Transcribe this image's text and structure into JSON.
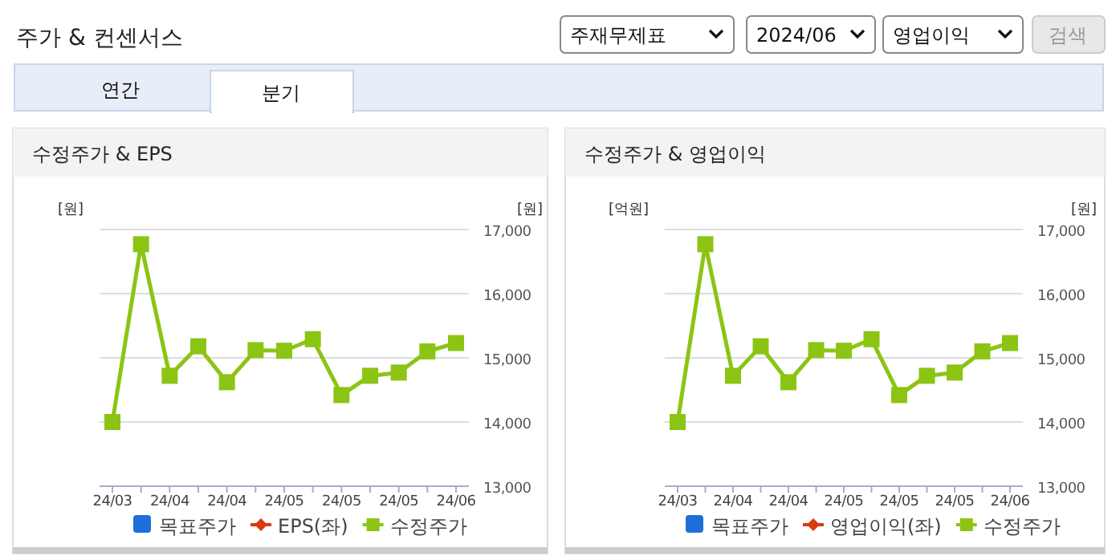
{
  "chart_data": [
    {
      "type": "line",
      "title": "수정주가 & EPS",
      "annotations": [
        "주가 & 컨센서스",
        "주재무제표",
        "2024/06",
        "영업이익",
        "검색",
        "연간",
        "분기"
      ],
      "ylabel": "[원]",
      "y2label": "[원]",
      "categories": [
        "24/03",
        null,
        "24/04",
        null,
        "24/04",
        null,
        "24/05",
        null,
        "24/05",
        null,
        "24/05",
        null,
        "24/06"
      ],
      "y2lim": [
        13000,
        17000
      ],
      "y2ticks": [
        {
          "value": 13000,
          "label": "13,000"
        },
        {
          "value": 14000,
          "label": "14,000"
        },
        {
          "value": 15000,
          "label": "15,000"
        },
        {
          "value": 16000,
          "label": "16,000"
        },
        {
          "value": 17000,
          "label": "17,000"
        }
      ],
      "grid": "y",
      "legend": "bottom",
      "line_style": "solid",
      "series": [
        {
          "name": "목표주가",
          "type": "bar",
          "color": "#1e6fdc",
          "values": [
            null,
            null,
            null,
            null,
            null,
            null,
            null,
            null,
            null,
            null,
            null,
            null,
            null
          ]
        },
        {
          "name": "EPS(좌)",
          "marker": "diamond",
          "color": "#d93a10",
          "values": [
            null,
            null,
            null,
            null,
            null,
            null,
            null,
            null,
            null,
            null,
            null,
            null,
            null
          ]
        },
        {
          "name": "수정주가",
          "marker": "square",
          "axis": "y2",
          "color": "#8cc414",
          "values": [
            14000,
            16770,
            14720,
            15180,
            14620,
            15120,
            15110,
            15290,
            14420,
            14720,
            14770,
            15100,
            15230
          ]
        }
      ]
    },
    {
      "type": "line",
      "title": "수정주가 & 영업이익",
      "ylabel": "[억원]",
      "y2label": "[원]",
      "categories": [
        "24/03",
        null,
        "24/04",
        null,
        "24/04",
        null,
        "24/05",
        null,
        "24/05",
        null,
        "24/05",
        null,
        "24/06"
      ],
      "y2lim": [
        13000,
        17000
      ],
      "y2ticks": [
        {
          "value": 13000,
          "label": "13,000"
        },
        {
          "value": 14000,
          "label": "14,000"
        },
        {
          "value": 15000,
          "label": "15,000"
        },
        {
          "value": 16000,
          "label": "16,000"
        },
        {
          "value": 17000,
          "label": "17,000"
        }
      ],
      "grid": "y",
      "legend": "bottom",
      "line_style": "solid",
      "series": [
        {
          "name": "목표주가",
          "type": "bar",
          "color": "#1e6fdc",
          "values": [
            null,
            null,
            null,
            null,
            null,
            null,
            null,
            null,
            null,
            null,
            null,
            null,
            null
          ]
        },
        {
          "name": "영업이익(좌)",
          "marker": "diamond",
          "color": "#d93a10",
          "values": [
            null,
            null,
            null,
            null,
            null,
            null,
            null,
            null,
            null,
            null,
            null,
            null,
            null
          ]
        },
        {
          "name": "수정주가",
          "marker": "square",
          "axis": "y2",
          "color": "#8cc414",
          "values": [
            14000,
            16770,
            14720,
            15180,
            14620,
            15120,
            15110,
            15290,
            14420,
            14720,
            14770,
            15100,
            15230
          ]
        }
      ]
    }
  ]
}
